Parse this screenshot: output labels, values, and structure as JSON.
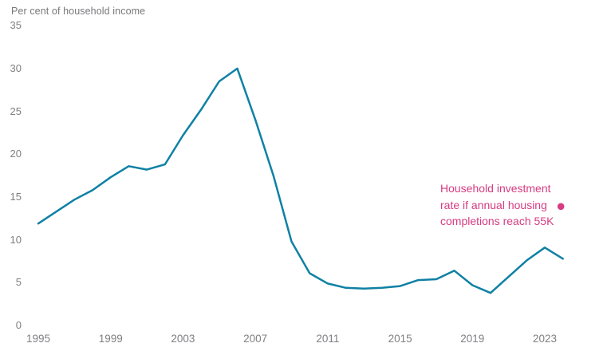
{
  "chart": {
    "title": "Per cent of household income"
  },
  "annotation": {
    "text": "Household investment rate if annual housing completions reach 55K"
  },
  "colors": {
    "line": "#0f81a4",
    "scenario": "#d63c82",
    "axis_text": "#808084"
  },
  "chart_data": {
    "type": "line",
    "title": "Per cent of household income",
    "xlabel": "",
    "ylabel": "Per cent of household income",
    "xlim": [
      1995,
      2024
    ],
    "ylim": [
      0,
      35
    ],
    "grid": false,
    "legend": "none",
    "x_ticks": [
      1995,
      1999,
      2003,
      2007,
      2011,
      2015,
      2019,
      2023
    ],
    "y_ticks": [
      0,
      5,
      10,
      15,
      20,
      25,
      30,
      35
    ],
    "x": [
      1995,
      1996,
      1997,
      1998,
      1999,
      2000,
      2001,
      2002,
      2003,
      2004,
      2005,
      2006,
      2007,
      2008,
      2009,
      2010,
      2011,
      2012,
      2013,
      2014,
      2015,
      2016,
      2017,
      2018,
      2019,
      2020,
      2021,
      2022,
      2023,
      2024
    ],
    "series": [
      {
        "name": "Household investment rate",
        "values": [
          11.9,
          13.3,
          14.7,
          15.8,
          17.3,
          18.6,
          18.2,
          18.8,
          22.2,
          25.2,
          28.5,
          30.0,
          24.0,
          17.5,
          9.8,
          6.1,
          4.9,
          4.4,
          4.3,
          4.4,
          4.6,
          5.3,
          5.4,
          6.4,
          4.7,
          3.8,
          5.7,
          7.6,
          9.1,
          7.8
        ]
      }
    ],
    "scenario_point": {
      "x": 2024,
      "y": 13.9,
      "label": "Household investment rate if annual housing completions reach 55K"
    }
  }
}
